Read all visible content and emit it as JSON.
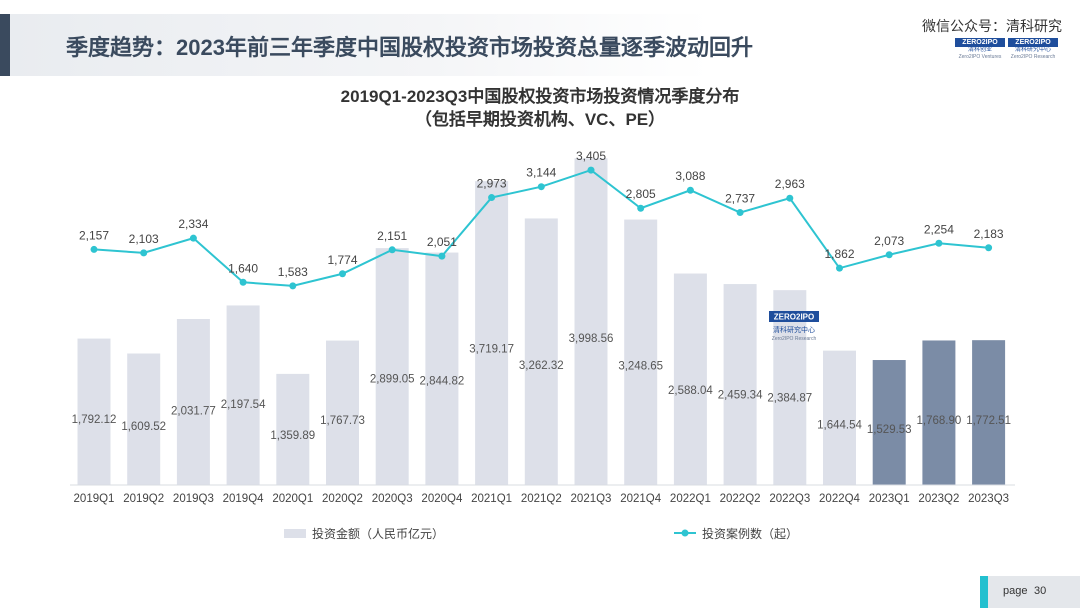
{
  "header": {
    "title": "季度趋势：2023年前三年季度中国股权投资市场投资总量逐季波动回升"
  },
  "watermark": {
    "wechat": "微信公众号：清科研究",
    "logo_left_mark": "ZERO2IPO",
    "logo_left_sub": "清科创业",
    "logo_left_sub2": "Zero2IPO Ventures",
    "logo_right_mark": "ZERO2IPO",
    "logo_right_sub": "清科研究中心",
    "logo_right_sub2": "Zero2IPO Research"
  },
  "chart_logo": {
    "mark": "ZERO2IPO",
    "sub": "清科研究中心",
    "sub2": "Zero2IPO Research"
  },
  "footer": {
    "page_label": "page",
    "page_number": "30"
  },
  "colors": {
    "bar": "#dde0e9",
    "bar_highlight": "#7b8ca6",
    "line": "#2ec4d1",
    "header_accent": "#3a4a5e",
    "footer_accent": "#23c0cf"
  },
  "chart_data": {
    "type": "bar+line",
    "title": "2019Q1-2023Q3中国股权投资市场投资情况季度分布",
    "subtitle": "（包括早期投资机构、VC、PE）",
    "categories": [
      "2019Q1",
      "2019Q2",
      "2019Q3",
      "2019Q4",
      "2020Q1",
      "2020Q2",
      "2020Q3",
      "2020Q4",
      "2021Q1",
      "2021Q2",
      "2021Q3",
      "2021Q4",
      "2022Q1",
      "2022Q2",
      "2022Q3",
      "2022Q4",
      "2023Q1",
      "2023Q2",
      "2023Q3"
    ],
    "bar_labels": [
      "1,792.12",
      "1,609.52",
      "2,031.77",
      "2,197.54",
      "1,359.89",
      "1,767.73",
      "2,899.05",
      "2,844.82",
      "3,719.17",
      "3,262.32",
      "3,998.56",
      "3,248.65",
      "2,588.04",
      "2,459.34",
      "2,384.87",
      "1,644.54",
      "1,529.53",
      "1,768.90",
      "1,772.51"
    ],
    "line_labels": [
      "2,157",
      "2,103",
      "2,334",
      "1,640",
      "1,583",
      "1,774",
      "2,151",
      "2,051",
      "2,973",
      "3,144",
      "3,405",
      "2,805",
      "3,088",
      "2,737",
      "2,963",
      "1,862",
      "2,073",
      "2,254",
      "2,183"
    ],
    "series": [
      {
        "name": "投资金额（人民币亿元）",
        "type": "bar",
        "values": [
          1792.12,
          1609.52,
          2031.77,
          2197.54,
          1359.89,
          1767.73,
          2899.05,
          2844.82,
          3719.17,
          3262.32,
          3998.56,
          3248.65,
          2588.04,
          2459.34,
          2384.87,
          1644.54,
          1529.53,
          1768.9,
          1772.51
        ],
        "highlight_from_index": 16
      },
      {
        "name": "投资案例数（起）",
        "type": "line",
        "values": [
          2157,
          2103,
          2334,
          1640,
          1583,
          1774,
          2151,
          2051,
          2973,
          3144,
          3405,
          2805,
          3088,
          2737,
          2963,
          1862,
          2073,
          2254,
          2183
        ]
      }
    ],
    "bar_axis_max": 4100,
    "line_axis_range": [
      -1550,
      3800
    ],
    "grid": false,
    "legend_position": "bottom"
  }
}
